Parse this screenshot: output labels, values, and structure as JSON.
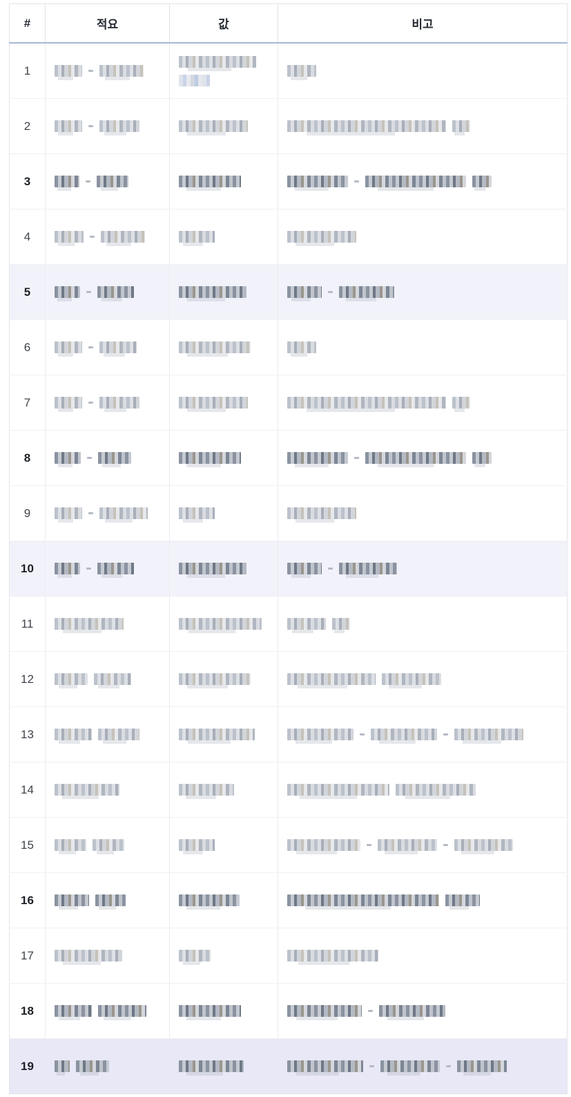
{
  "table": {
    "columns": [
      {
        "key": "num",
        "label": "#"
      },
      {
        "key": "desc",
        "label": "적요"
      },
      {
        "key": "value",
        "label": "값"
      },
      {
        "key": "note",
        "label": "비고"
      }
    ],
    "redaction_note": "all body cell text is pixelated/redacted; segment widths in px describe the redacted text blocks per line",
    "rows": [
      {
        "num": "1",
        "bold": false,
        "highlight": "none",
        "desc": [
          [
            40,
            "-",
            64
          ]
        ],
        "value": [
          [
            112
          ],
          [
            45
          ]
        ],
        "note": [
          [
            42
          ]
        ]
      },
      {
        "num": "2",
        "bold": false,
        "highlight": "none",
        "desc": [
          [
            40,
            "-",
            58
          ]
        ],
        "value": [
          [
            100
          ]
        ],
        "note": [
          [
            230,
            26
          ]
        ]
      },
      {
        "num": "3",
        "bold": true,
        "highlight": "none",
        "desc": [
          [
            36,
            "-",
            46
          ]
        ],
        "value": [
          [
            90
          ]
        ],
        "note": [
          [
            88,
            "-",
            146,
            28
          ]
        ]
      },
      {
        "num": "4",
        "bold": false,
        "highlight": "none",
        "desc": [
          [
            42,
            "-",
            64
          ]
        ],
        "value": [
          [
            52
          ]
        ],
        "note": [
          [
            100
          ]
        ]
      },
      {
        "num": "5",
        "bold": true,
        "highlight": "light",
        "desc": [
          [
            37,
            "-",
            53
          ]
        ],
        "value": [
          [
            98
          ]
        ],
        "note": [
          [
            50,
            "-",
            80
          ]
        ]
      },
      {
        "num": "6",
        "bold": false,
        "highlight": "none",
        "desc": [
          [
            40,
            "-",
            54
          ]
        ],
        "value": [
          [
            104
          ]
        ],
        "note": [
          [
            42
          ]
        ]
      },
      {
        "num": "7",
        "bold": false,
        "highlight": "none",
        "desc": [
          [
            40,
            "-",
            58
          ]
        ],
        "value": [
          [
            100
          ]
        ],
        "note": [
          [
            230,
            26
          ]
        ]
      },
      {
        "num": "8",
        "bold": true,
        "highlight": "none",
        "desc": [
          [
            38,
            "-",
            48
          ]
        ],
        "value": [
          [
            90
          ]
        ],
        "note": [
          [
            88,
            "-",
            146,
            28
          ]
        ]
      },
      {
        "num": "9",
        "bold": false,
        "highlight": "none",
        "desc": [
          [
            40,
            "-",
            70
          ]
        ],
        "value": [
          [
            52
          ]
        ],
        "note": [
          [
            100
          ]
        ]
      },
      {
        "num": "10",
        "bold": true,
        "highlight": "light",
        "desc": [
          [
            37,
            "-",
            53
          ]
        ],
        "value": [
          [
            98
          ]
        ],
        "note": [
          [
            50,
            "-",
            84
          ]
        ]
      },
      {
        "num": "11",
        "bold": false,
        "highlight": "none",
        "desc": [
          [
            100
          ]
        ],
        "value": [
          [
            120
          ]
        ],
        "note": [
          [
            56,
            26
          ]
        ]
      },
      {
        "num": "12",
        "bold": false,
        "highlight": "none",
        "desc": [
          [
            48,
            54
          ]
        ],
        "value": [
          [
            104
          ]
        ],
        "note": [
          [
            128,
            86
          ]
        ]
      },
      {
        "num": "13",
        "bold": false,
        "highlight": "none",
        "desc": [
          [
            54,
            60
          ]
        ],
        "value": [
          [
            110
          ]
        ],
        "note": [
          [
            96,
            "-",
            96,
            "-",
            100
          ]
        ]
      },
      {
        "num": "14",
        "bold": false,
        "highlight": "none",
        "desc": [
          [
            94
          ]
        ],
        "value": [
          [
            80
          ]
        ],
        "note": [
          [
            148,
            116
          ]
        ]
      },
      {
        "num": "15",
        "bold": false,
        "highlight": "none",
        "desc": [
          [
            46,
            46
          ]
        ],
        "value": [
          [
            52
          ]
        ],
        "note": [
          [
            106,
            "-",
            86,
            "-",
            85
          ]
        ]
      },
      {
        "num": "16",
        "bold": true,
        "highlight": "none",
        "desc": [
          [
            50,
            44
          ]
        ],
        "value": [
          [
            88
          ]
        ],
        "note": [
          [
            220,
            50
          ]
        ]
      },
      {
        "num": "17",
        "bold": false,
        "highlight": "none",
        "desc": [
          [
            98
          ]
        ],
        "value": [
          [
            46
          ]
        ],
        "note": [
          [
            132
          ]
        ]
      },
      {
        "num": "18",
        "bold": true,
        "highlight": "none",
        "desc": [
          [
            54,
            70
          ]
        ],
        "value": [
          [
            90
          ]
        ],
        "note": [
          [
            108,
            "-",
            96
          ]
        ]
      },
      {
        "num": "19",
        "bold": true,
        "highlight": "strong",
        "desc": [
          [
            22,
            48
          ]
        ],
        "value": [
          [
            94
          ]
        ],
        "note": [
          [
            110,
            "-",
            86,
            "-",
            72
          ]
        ]
      }
    ]
  },
  "colors": {
    "header_border": "#a9b6d6",
    "row_border": "#f0f0f3",
    "column_border": "#ebebf0",
    "highlight": "#f2f2fb",
    "highlight_strong": "#e8e8f7",
    "header_text": "#262b33",
    "row_number_text": "#3f434a"
  }
}
